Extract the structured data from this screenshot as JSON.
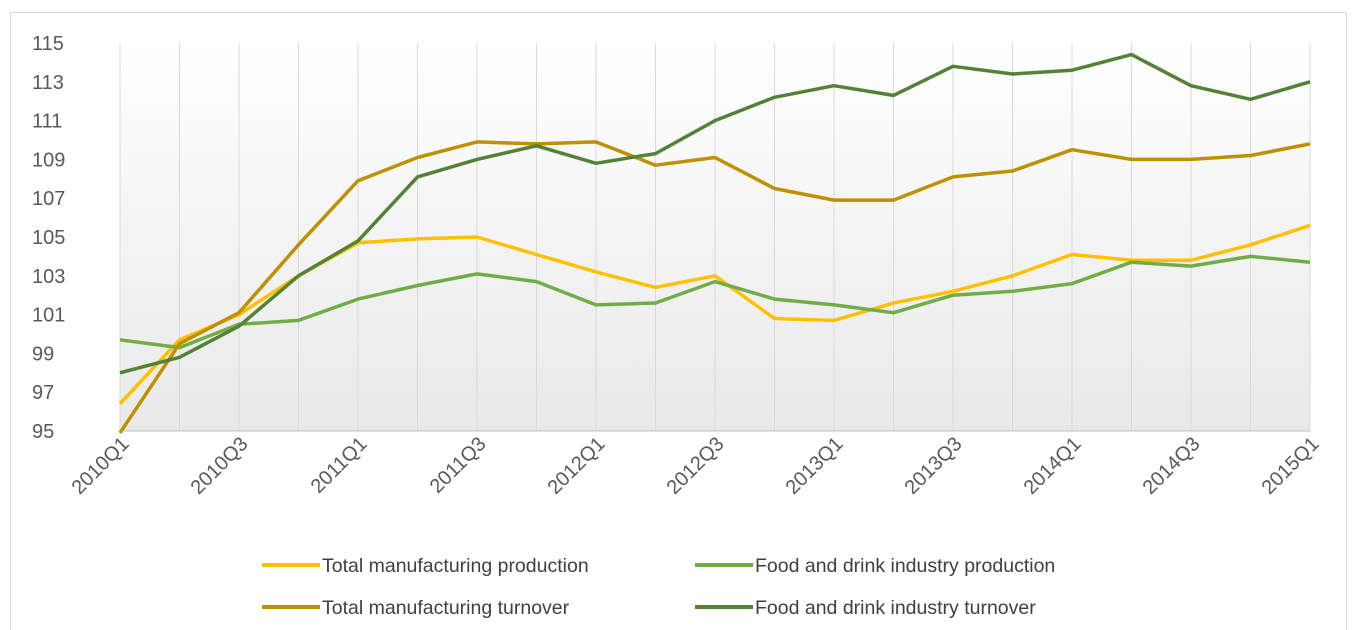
{
  "chart_data": {
    "type": "line",
    "title": "",
    "xlabel": "",
    "ylabel": "",
    "ylim": [
      95,
      115
    ],
    "yticks": [
      95,
      97,
      99,
      101,
      103,
      105,
      107,
      109,
      111,
      113,
      115
    ],
    "grid": "vertical",
    "legend_position": "bottom",
    "x": [
      "2010Q1",
      "2010Q2",
      "2010Q3",
      "2010Q4",
      "2011Q1",
      "2011Q2",
      "2011Q3",
      "2011Q4",
      "2012Q1",
      "2012Q2",
      "2012Q3",
      "2012Q4",
      "2013Q1",
      "2013Q2",
      "2013Q3",
      "2013Q4",
      "2014Q1",
      "2014Q2",
      "2014Q3",
      "2014Q4",
      "2015Q1"
    ],
    "xtick_labels_shown": [
      "2010Q1",
      "2010Q3",
      "2011Q1",
      "2011Q3",
      "2012Q1",
      "2012Q3",
      "2013Q1",
      "2013Q3",
      "2014Q1",
      "2014Q3",
      "2015Q1"
    ],
    "series": [
      {
        "name": "Total manufacturing production",
        "color": "#ffc000",
        "values": [
          96.4,
          99.7,
          101.0,
          103.0,
          104.7,
          104.9,
          105.0,
          104.1,
          103.2,
          102.4,
          103.0,
          100.8,
          100.7,
          101.6,
          102.2,
          103.0,
          104.1,
          103.8,
          103.8,
          104.6,
          105.6
        ]
      },
      {
        "name": "Food and drink industry production",
        "color": "#70ad47",
        "values": [
          99.7,
          99.3,
          100.5,
          100.7,
          101.8,
          102.5,
          103.1,
          102.7,
          101.5,
          101.6,
          102.7,
          101.8,
          101.5,
          101.1,
          102.0,
          102.2,
          102.6,
          103.7,
          103.5,
          104.0,
          103.7
        ]
      },
      {
        "name": "Total manufacturing turnover",
        "color": "#bf9000",
        "values": [
          94.9,
          99.5,
          101.1,
          104.6,
          107.9,
          109.1,
          109.9,
          109.8,
          109.9,
          108.7,
          109.1,
          107.5,
          106.9,
          106.9,
          108.1,
          108.4,
          109.5,
          109.0,
          109.0,
          109.2,
          109.8
        ]
      },
      {
        "name": "Food and drink industry turnover",
        "color": "#548235",
        "values": [
          98.0,
          98.8,
          100.4,
          103.0,
          104.8,
          108.1,
          109.0,
          109.7,
          108.8,
          109.3,
          111.0,
          112.2,
          112.8,
          112.3,
          113.8,
          113.4,
          113.6,
          114.4,
          112.8,
          112.1,
          113.0
        ]
      }
    ]
  }
}
